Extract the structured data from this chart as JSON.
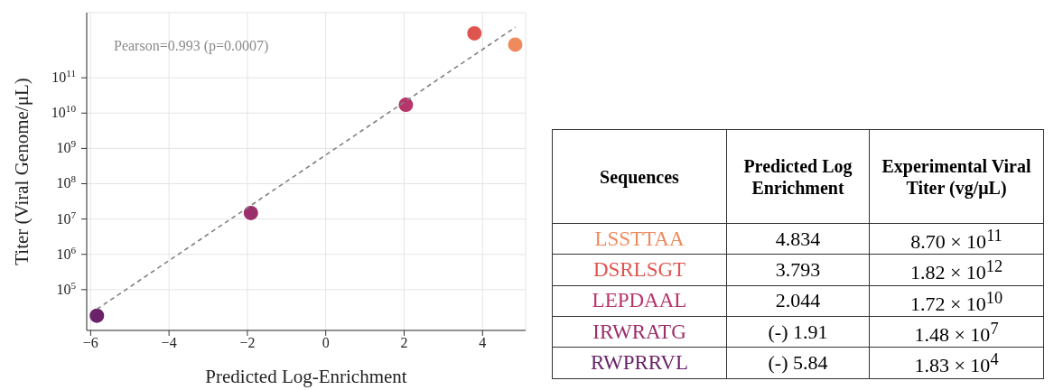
{
  "chart_data": [
    {
      "type": "scatter",
      "x": [
        4.834,
        3.793,
        2.044,
        -1.91,
        -5.84
      ],
      "series": [
        {
          "type": "scatter",
          "values": [
            870000000000.0,
            1820000000000.0,
            17200000000.0,
            14800000.0,
            18300.0
          ],
          "colors": [
            "#ef8a5e",
            "#e0544f",
            "#b8356a",
            "#9b2f6b",
            "#6a2368"
          ],
          "marker": "circle"
        },
        {
          "type": "line",
          "x": [
            -5.84,
            4.84
          ],
          "values": [
            28000,
            2700000000000.0
          ],
          "color": "#808080",
          "line_style": "dashed",
          "marker": "none"
        }
      ],
      "xlabel": "Predicted Log-Enrichment",
      "ylabel": "Titer (Viral Genome/μL)",
      "xlim": [
        -6.1,
        5.1
      ],
      "xticks": [
        {
          "value": -6,
          "label": "−6"
        },
        {
          "value": -4,
          "label": "−4"
        },
        {
          "value": -2,
          "label": "−2"
        },
        0,
        2,
        4
      ],
      "ylim": [
        7000,
        7000000000000.0
      ],
      "yticks": [
        {
          "value": 100000.0,
          "label": "10$^{5}$"
        },
        {
          "value": 1000000.0,
          "label": "10$^{6}$"
        },
        {
          "value": 10000000.0,
          "label": "10$^{7}$"
        },
        {
          "value": 100000000.0,
          "label": "10$^{8}$"
        },
        {
          "value": 1000000000.0,
          "label": "10$^{9}$"
        },
        {
          "value": 10000000000.0,
          "label": "10$^{10}$"
        },
        {
          "value": 100000000000.0,
          "label": "10$^{11}$"
        }
      ],
      "log": "y",
      "grid": true,
      "annotations": [
        "Pearson=0.993 (p=0.0007)"
      ]
    },
    {
      "type": "other",
      "categories": [
        "Sequences",
        "Predicted Log Enrichment",
        "Experimental Viral Titer (vg/μL)"
      ],
      "y_categories": [
        "LSSTTAA",
        "DSRLSGT",
        "LEPDAAL",
        "IRWRATG",
        "RWPRRVL"
      ],
      "colors": [
        "#ef8a5e",
        "#e0544f",
        "#b8356a",
        "#9b2f6b",
        "#6a2368"
      ],
      "cell_labels": [
        [
          "4.834",
          "8.70 × 10$^{11}$"
        ],
        [
          "3.793",
          "1.82 × 10$^{12}$"
        ],
        [
          "2.044",
          "1.72 × 10$^{10}$"
        ],
        [
          "(-) 1.91",
          "1.48 × 10$^{7}$"
        ],
        [
          "(-) 5.84",
          "1.83 × 10$^{4}$"
        ]
      ]
    }
  ]
}
